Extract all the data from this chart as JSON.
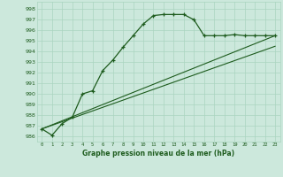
{
  "title": "Graphe pression niveau de la mer (hPa)",
  "bg_color": "#cce8dc",
  "grid_color": "#aad4c0",
  "line_color": "#1e5c1e",
  "x_ticks": [
    0,
    1,
    2,
    3,
    4,
    5,
    6,
    7,
    8,
    9,
    10,
    11,
    12,
    13,
    14,
    15,
    16,
    17,
    18,
    19,
    20,
    21,
    22,
    23
  ],
  "y_min": 985.5,
  "y_max": 998.7,
  "y_ticks": [
    986,
    987,
    988,
    989,
    990,
    991,
    992,
    993,
    994,
    995,
    996,
    997,
    998
  ],
  "y_main": [
    986.7,
    986.1,
    987.2,
    987.8,
    990.0,
    990.3,
    992.2,
    993.2,
    994.4,
    995.5,
    996.6,
    997.4,
    997.5,
    997.5,
    997.5,
    997.0,
    995.5,
    995.5,
    995.5,
    995.6,
    995.5,
    995.5,
    995.5,
    995.5
  ],
  "trend_line1": [
    [
      0,
      986.7
    ],
    [
      23,
      995.5
    ]
  ],
  "trend_line2": [
    [
      0,
      986.7
    ],
    [
      23,
      994.5
    ]
  ]
}
